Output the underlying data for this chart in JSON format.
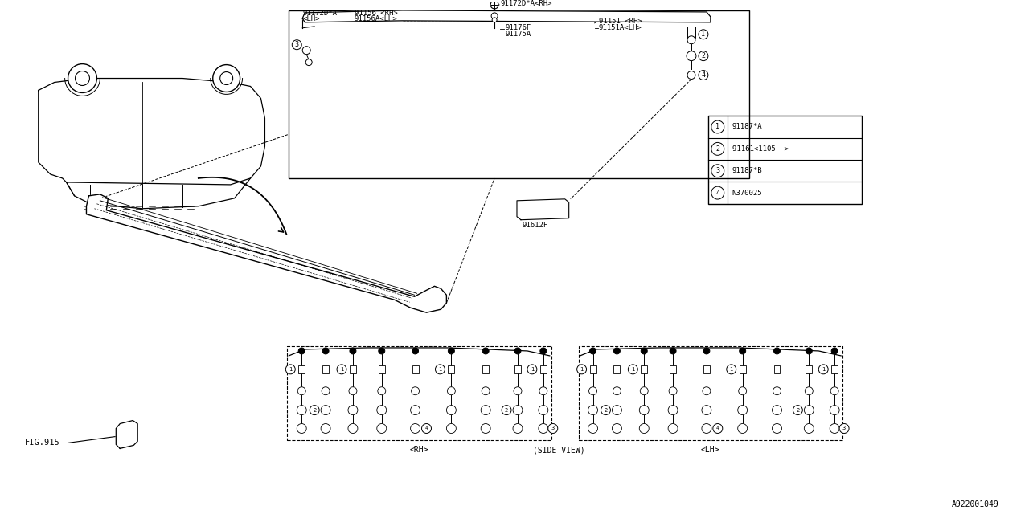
{
  "bg": "#ffffff",
  "legend_items": [
    {
      "num": "1",
      "code": "91187*A"
    },
    {
      "num": "2",
      "code": "91161<1105- >"
    },
    {
      "num": "3",
      "code": "91187*B"
    },
    {
      "num": "4",
      "code": "N370025"
    }
  ],
  "bottom_labels": [
    "<RH>",
    "(SIDE VIEW)",
    "<LH>"
  ],
  "diagram_id": "A922001049"
}
